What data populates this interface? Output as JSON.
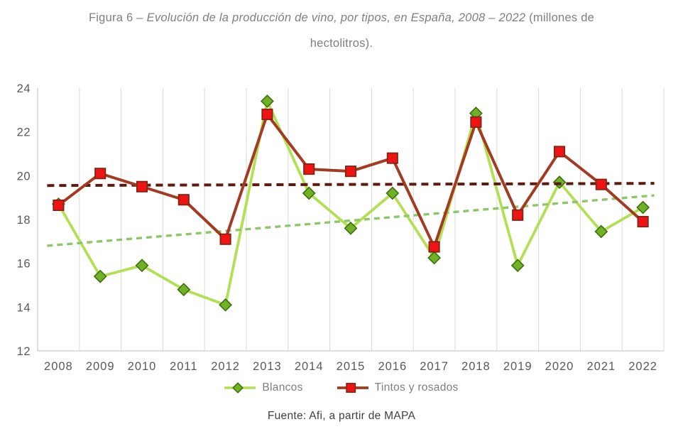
{
  "figure": {
    "title_prefix": "Figura 6 – ",
    "title_italic": "Evolución de la producción de vino, por tipos, en España, 2008 – 2022",
    "title_suffix": " (millones de",
    "title_suffix2": "hectolitros).",
    "source": "Fuente: Afi, a partir de MAPA"
  },
  "colors": {
    "grid": "#d9d9d9",
    "axis": "#bfbfbf",
    "tick_text": "#595959",
    "title_text": "#7f7f7f",
    "source_text": "#404040"
  },
  "chart_data": {
    "type": "line",
    "title": "Figura 6 – Evolución de la producción de vino, por tipos, en España, 2008 – 2022 (millones de hectolitros).",
    "xlabel": "",
    "ylabel": "",
    "ylim": [
      12,
      24
    ],
    "ytick_step": 2,
    "grid": "vertical-only",
    "legend_position": "bottom",
    "source": "Fuente: Afi, a partir de MAPA",
    "categories": [
      "2008",
      "2009",
      "2010",
      "2011",
      "2012",
      "2013",
      "2014",
      "2015",
      "2016",
      "2017",
      "2018",
      "2019",
      "2020",
      "2021",
      "2022"
    ],
    "series": [
      {
        "name": "Blancos",
        "marker": "diamond",
        "line_color": "#b2e052",
        "marker_color": "#70b225",
        "marker_border": "#3e6e10",
        "values": [
          18.7,
          15.4,
          15.9,
          14.8,
          14.1,
          23.4,
          19.2,
          17.6,
          19.2,
          16.25,
          22.85,
          15.9,
          19.7,
          17.45,
          18.55
        ]
      },
      {
        "name": "Tintos y rosados",
        "marker": "square",
        "line_color": "#a23b22",
        "marker_color": "#ee1414",
        "marker_border": "#7e2412",
        "values": [
          18.65,
          20.1,
          19.5,
          18.9,
          17.1,
          22.8,
          20.3,
          20.2,
          20.8,
          16.75,
          22.45,
          18.2,
          21.1,
          19.6,
          17.9
        ]
      }
    ],
    "trendlines": [
      {
        "series": "Blancos",
        "style": "dashed",
        "color": "#8cc868",
        "dash": [
          8,
          6
        ],
        "start_value": 16.8,
        "end_value": 19.1
      },
      {
        "series": "Tintos y rosados",
        "style": "dashed",
        "color": "#5e1b0b",
        "dash": [
          10,
          7
        ],
        "start_value": 19.55,
        "end_value": 19.65
      }
    ]
  }
}
